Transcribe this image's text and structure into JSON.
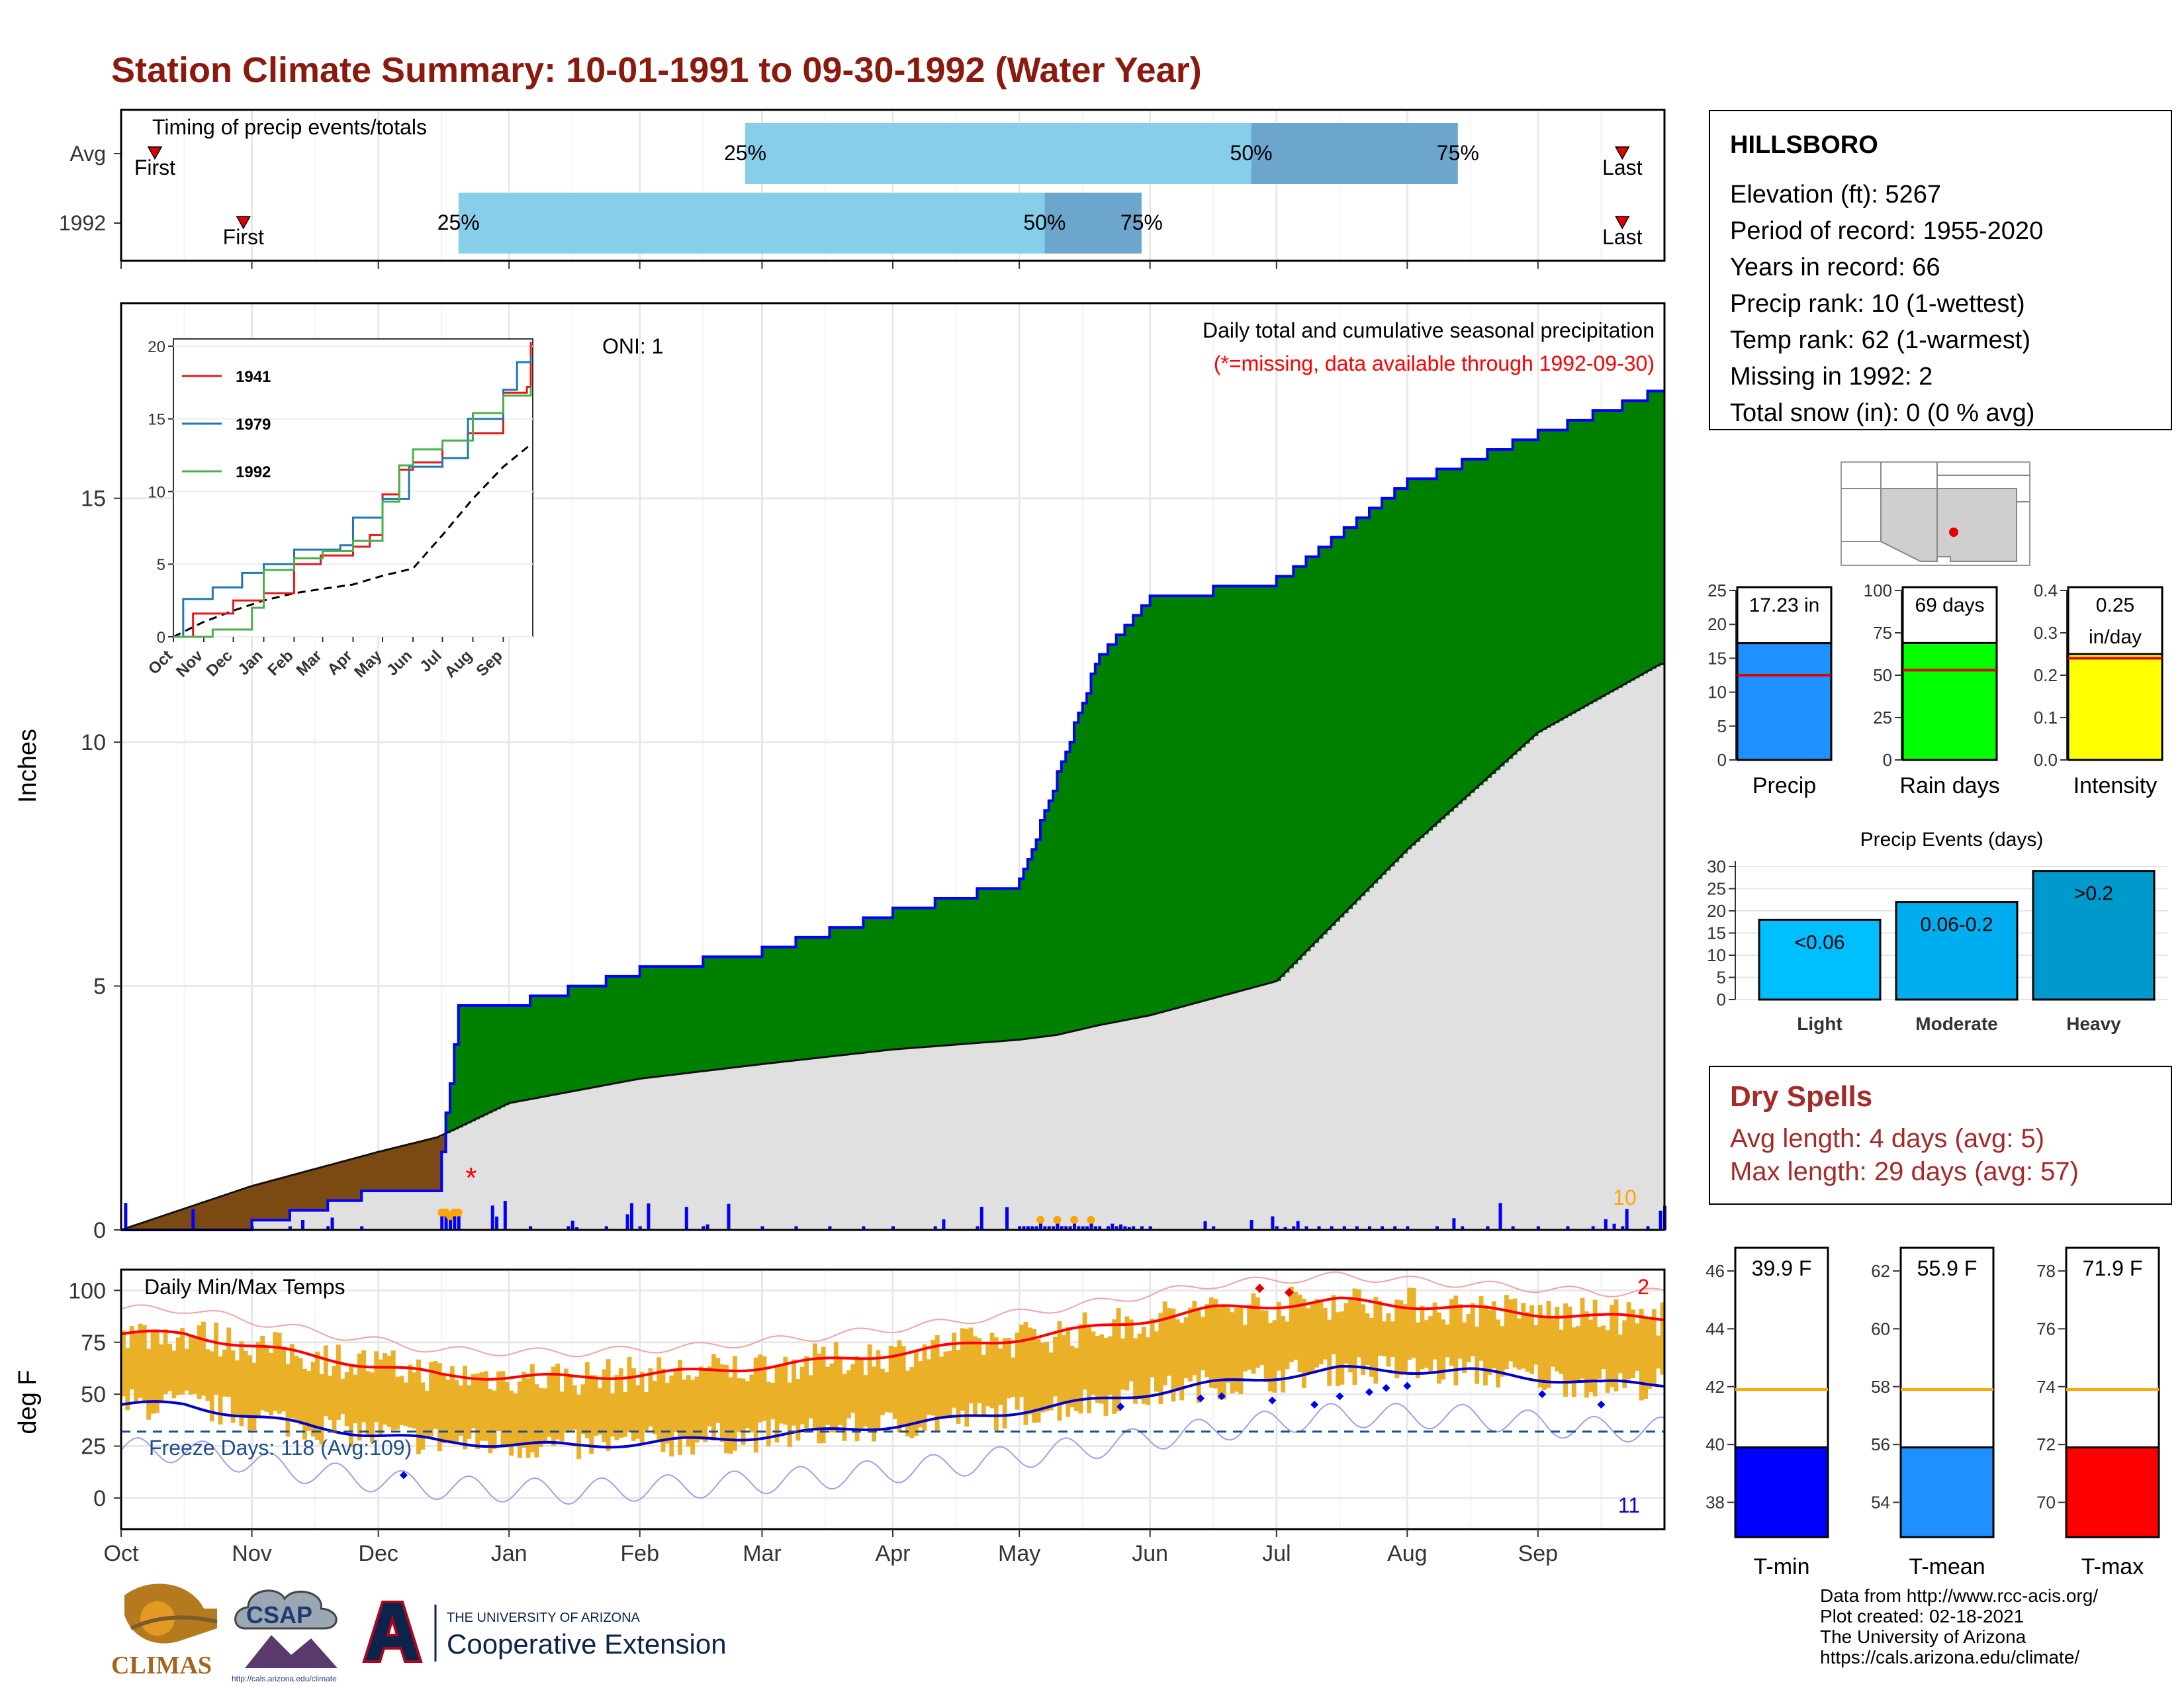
{
  "page": {
    "title": "Station Climate Summary: 10-01-1991 to 09-30-1992 (Water Year)"
  },
  "station": {
    "name": "HILLSBORO",
    "rows": [
      "Elevation (ft): 5267",
      "Period of record: 1955-2020",
      "Years in record: 66",
      "Precip rank: 10 (1-wettest)",
      "Temp rank: 62 (1-warmest)",
      "Missing in 1992: 2",
      "Total snow (in): 0 (0 % avg)"
    ]
  },
  "timing": {
    "title": "Timing of precip events/totals",
    "rows": [
      {
        "label": "Avg",
        "first_day": 8,
        "p25_day": 148,
        "p50_day": 268,
        "p75_day": 317,
        "last_day": 356
      },
      {
        "label": "1992",
        "first_day": 29,
        "p25_day": 80,
        "p50_day": 219,
        "p75_day": 242,
        "last_day": 356
      }
    ],
    "first_label": "First",
    "last_label": "Last",
    "p25_label": "25%",
    "p50_label": "50%",
    "p75_label": "75%",
    "colors": {
      "p25_50": "#87ceeb",
      "p50_75": "#6ca6cd",
      "marker": "#e00000"
    }
  },
  "months": [
    "Oct",
    "Nov",
    "Dec",
    "Jan",
    "Feb",
    "Mar",
    "Apr",
    "May",
    "Jun",
    "Jul",
    "Aug",
    "Sep"
  ],
  "precip_panel": {
    "y_label": "Inches",
    "y_ticks": [
      0,
      5,
      10,
      15
    ],
    "ylim": [
      0,
      19
    ],
    "oni": "ONI: 1",
    "header": "Daily total and cumulative seasonal precipitation",
    "missing_note": "(*=missing, data available through 1992-09-30)",
    "rank_label": "10",
    "colors": {
      "surplus": "#008000",
      "deficit": "#7b4a12",
      "normal": "#e0e0e0",
      "line": "#0000ff",
      "missing": "#ff0000",
      "rank": "#ffa500"
    }
  },
  "inset": {
    "series": [
      {
        "name": "1941",
        "color": "#e31a1c"
      },
      {
        "name": "1979",
        "color": "#1f78b4"
      },
      {
        "name": "1992",
        "color": "#4daf4a"
      }
    ],
    "y_ticks": [
      0,
      5,
      10,
      15,
      20
    ],
    "ylim": [
      0,
      20.5
    ],
    "months": [
      "Oct",
      "Nov",
      "Dec",
      "Jan",
      "Feb",
      "Mar",
      "Apr",
      "May",
      "Jun",
      "Jul",
      "Aug",
      "Sep"
    ]
  },
  "temp_panel": {
    "y_label": "deg F",
    "title": "Daily Min/Max Temps",
    "freeze_label": "Freeze Days: 118 (Avg:109)",
    "y_ticks": [
      0,
      25,
      50,
      75,
      100
    ],
    "ylim": [
      -15,
      110
    ],
    "freeze_line": 32,
    "avg_min_line": 31,
    "record_max_count": "2",
    "record_min_count": "11"
  },
  "bars_precip": {
    "label": "Precip",
    "value_label": "17.23 in",
    "value": 17.23,
    "avg": 12.5,
    "ylim": [
      0,
      25
    ],
    "ticks": [
      0,
      5,
      10,
      15,
      20,
      25
    ],
    "color": "#1e90ff"
  },
  "bars_raindays": {
    "label": "Rain days",
    "value_label": "69 days",
    "value": 69,
    "avg": 53,
    "ylim": [
      0,
      100
    ],
    "ticks": [
      0,
      25,
      50,
      75,
      100
    ],
    "color": "#00ff00"
  },
  "bars_intensity": {
    "label": "Intensity",
    "value_label": "0.25",
    "value_label2": "in/day",
    "value": 0.25,
    "avg": 0.24,
    "ylim": [
      0,
      0.4
    ],
    "ticks": [
      0.0,
      0.1,
      0.2,
      0.3,
      0.4
    ],
    "color": "#ffff00"
  },
  "events": {
    "title": "Precip Events (days)",
    "ylim": [
      0,
      30
    ],
    "ticks": [
      0,
      5,
      10,
      15,
      20,
      25,
      30
    ],
    "categories": [
      "Light",
      "Moderate",
      "Heavy"
    ],
    "values": [
      18,
      22,
      29
    ],
    "labels": [
      "<0.06",
      "0.06-0.2",
      ">0.2"
    ],
    "colors": [
      "#00bfff",
      "#00aeef",
      "#0099cc"
    ]
  },
  "dry_spells": {
    "title": "Dry Spells",
    "avg_length": "Avg length: 4 days (avg: 5)",
    "max_length": "Max length: 29 days (avg: 57)"
  },
  "temp_bars": [
    {
      "label": "T-min",
      "value_label": "39.9 F",
      "value": 39.9,
      "avg": 41.9,
      "ylim": [
        36.8,
        46.8
      ],
      "ticks": [
        38,
        40,
        42,
        44,
        46
      ],
      "color": "#0000ff"
    },
    {
      "label": "T-mean",
      "value_label": "55.9 F",
      "value": 55.9,
      "avg": 57.9,
      "ylim": [
        52.8,
        62.8
      ],
      "ticks": [
        54,
        56,
        58,
        60,
        62
      ],
      "color": "#1e90ff"
    },
    {
      "label": "T-max",
      "value_label": "71.9 F",
      "value": 71.9,
      "avg": 73.9,
      "ylim": [
        68.8,
        78.8
      ],
      "ticks": [
        70,
        72,
        74,
        76,
        78
      ],
      "color": "#ff0000"
    }
  ],
  "credits": {
    "line1": "Data from http://www.rcc-acis.org/",
    "line2": "Plot created: 02-18-2021",
    "line3": "The University of Arizona",
    "line4": "https://cals.arizona.edu/climate/"
  },
  "logos": {
    "climas": "CLIMAS",
    "csap": "CSAP",
    "csap_url": "http://cals.arizona.edu/climate",
    "ua_small": "THE UNIVERSITY OF ARIZONA",
    "ua_big": "Cooperative Extension"
  },
  "chart_data": [
    {
      "type": "area",
      "title": "Daily total and cumulative seasonal precipitation",
      "ylabel": "Inches",
      "x": [
        "1991-10-01",
        "1991-11-01",
        "1991-12-01",
        "1991-12-15",
        "1991-12-20",
        "1992-01-01",
        "1992-02-01",
        "1992-03-01",
        "1992-04-01",
        "1992-05-01",
        "1992-05-10",
        "1992-05-20",
        "1992-06-01",
        "1992-07-01",
        "1992-08-01",
        "1992-09-01",
        "1992-09-30"
      ],
      "series": [
        {
          "name": "1992 cumulative",
          "values": [
            0.0,
            0.1,
            0.8,
            0.8,
            4.6,
            4.6,
            5.3,
            5.7,
            6.5,
            7.1,
            9.3,
            11.8,
            12.9,
            13.3,
            15.3,
            16.3,
            17.2
          ]
        },
        {
          "name": "average cumulative",
          "values": [
            0.0,
            0.9,
            1.6,
            1.9,
            2.1,
            2.6,
            3.1,
            3.4,
            3.7,
            3.9,
            4.0,
            4.2,
            4.4,
            5.1,
            7.8,
            10.2,
            11.6
          ]
        }
      ],
      "ylim": [
        0,
        19
      ]
    },
    {
      "type": "line",
      "title": "Daily Min/Max Temps",
      "ylabel": "deg F",
      "x": [
        "Oct",
        "Nov",
        "Dec",
        "Jan",
        "Feb",
        "Mar",
        "Apr",
        "May",
        "Jun",
        "Jul",
        "Aug",
        "Sep"
      ],
      "series": [
        {
          "name": "avg max",
          "values": [
            79,
            68,
            59,
            58,
            61,
            66,
            73,
            81,
            91,
            95,
            91,
            87
          ]
        },
        {
          "name": "avg min",
          "values": [
            45,
            34,
            27,
            25,
            28,
            32,
            38,
            46,
            55,
            62,
            61,
            55
          ]
        }
      ],
      "ylim": [
        -15,
        110
      ]
    }
  ]
}
